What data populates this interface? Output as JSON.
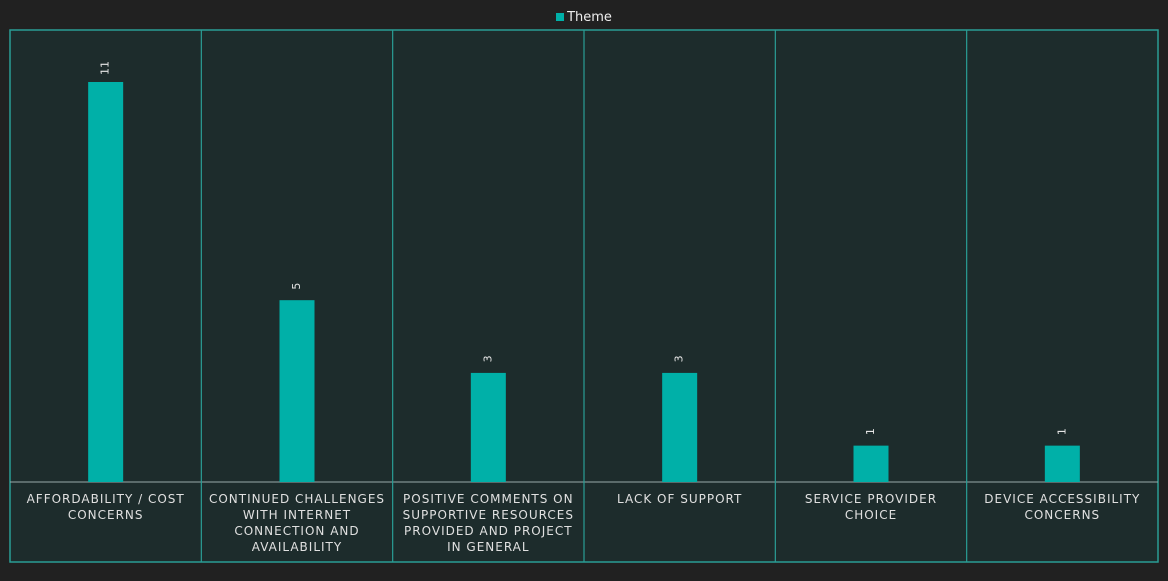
{
  "chart_data": {
    "type": "bar",
    "categories": [
      "AFFORDABILITY / COST CONCERNS",
      "CONTINUED CHALLENGES WITH INTERNET CONNECTION AND AVAILABILITY",
      "POSITIVE COMMENTS ON SUPPORTIVE RESOURCES PROVIDED AND PROJECT IN GENERAL",
      "LACK OF SUPPORT",
      "SERVICE PROVIDER CHOICE",
      "DEVICE ACCESSIBILITY CONCERNS"
    ],
    "series": [
      {
        "name": "Theme",
        "color": "#00b0a8",
        "values": [
          11,
          5,
          3,
          3,
          1,
          1
        ]
      }
    ]
  }
}
